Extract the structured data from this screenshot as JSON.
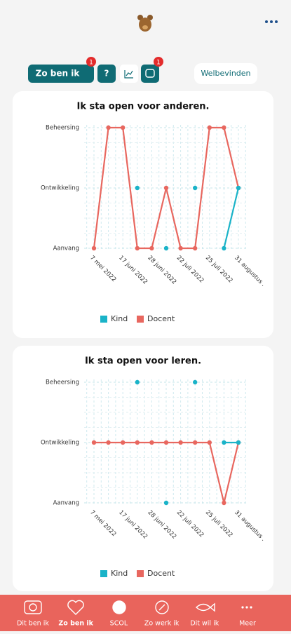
{
  "tabs": {
    "active": "Zo ben ik",
    "active_badge": "1",
    "help": "?",
    "chat_badge": "1",
    "right": "Welbevinden"
  },
  "chart_data": [
    {
      "type": "line",
      "title": "Ik sta open voor anderen.",
      "categories": [
        "7 mei 2022",
        null,
        "17 juni 2022",
        null,
        "28 juni 2022",
        null,
        "22 juli 2022",
        null,
        "25 juli 2022",
        null,
        "31 augustus ."
      ],
      "ylim": [
        0,
        2
      ],
      "yticks": [
        {
          "value": 0,
          "label": "Aanvang"
        },
        {
          "value": 1,
          "label": "Ontwikkeling"
        },
        {
          "value": 2,
          "label": "Beheersing"
        }
      ],
      "grid": true,
      "series": [
        {
          "name": "Kind",
          "color": "#1ab3c8",
          "values": [
            null,
            null,
            null,
            1,
            null,
            0,
            null,
            1,
            null,
            0,
            1
          ]
        },
        {
          "name": "Docent",
          "color": "#e8675f",
          "values": [
            0,
            2,
            2,
            0,
            0,
            1,
            0,
            0,
            2,
            2,
            1
          ]
        }
      ]
    },
    {
      "type": "line",
      "title": "Ik sta open voor leren.",
      "categories": [
        "7 mei 2022",
        null,
        "17 juni 2022",
        null,
        "28 juni 2022",
        null,
        "22 juli 2022",
        null,
        "25 juli 2022",
        null,
        "31 augustus ."
      ],
      "ylim": [
        0,
        2
      ],
      "yticks": [
        {
          "value": 0,
          "label": "Aanvang"
        },
        {
          "value": 1,
          "label": "Ontwikkeling"
        },
        {
          "value": 2,
          "label": "Beheersing"
        }
      ],
      "grid": true,
      "series": [
        {
          "name": "Kind",
          "color": "#1ab3c8",
          "values": [
            null,
            null,
            null,
            2,
            null,
            0,
            null,
            2,
            null,
            1,
            1
          ]
        },
        {
          "name": "Docent",
          "color": "#e8675f",
          "values": [
            1,
            1,
            1,
            1,
            1,
            1,
            1,
            1,
            1,
            0,
            1
          ]
        }
      ]
    }
  ],
  "nav": [
    "Dit ben ik",
    "Zo ben ik",
    "SCOL",
    "Zo werk ik",
    "Dit wil ik",
    "Meer"
  ]
}
